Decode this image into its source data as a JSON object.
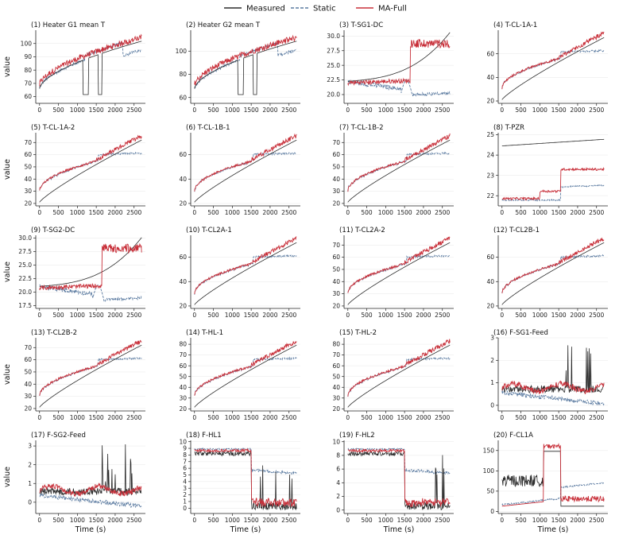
{
  "legend": {
    "items": [
      {
        "label": "Measured",
        "color": "#2b2b2b",
        "dash": "solid"
      },
      {
        "label": "Static",
        "color": "#5a7aa0",
        "dash": "dashed"
      },
      {
        "label": "MA-Full",
        "color": "#c8303a",
        "dash": "solid"
      }
    ]
  },
  "ylabel": "value",
  "xlabel": "Time (s)",
  "xticks": [
    0,
    500,
    1000,
    1500,
    2000,
    2500
  ],
  "xlim": [
    -100,
    2800
  ],
  "chart_data": [
    {
      "type": "line",
      "title": "(1) Heater G1 mean T",
      "ylim": [
        55,
        110
      ],
      "yticks": [
        60,
        70,
        80,
        90,
        100
      ],
      "profile": "heater"
    },
    {
      "type": "line",
      "title": "(2) Heater G2 mean T",
      "ylim": [
        55,
        118
      ],
      "yticks": [
        60,
        80,
        100
      ],
      "profile": "heater"
    },
    {
      "type": "line",
      "title": "(3) T-SG1-DC",
      "ylim": [
        18.5,
        31
      ],
      "yticks": [
        20.0,
        22.5,
        25.0,
        27.5,
        30.0
      ],
      "profile": "sgdc"
    },
    {
      "type": "line",
      "title": "(4) T-CL-1A-1",
      "ylim": [
        18,
        80
      ],
      "yticks": [
        20,
        40,
        60
      ],
      "profile": "temp"
    },
    {
      "type": "line",
      "title": "(5) T-CL-1A-2",
      "ylim": [
        18,
        78
      ],
      "yticks": [
        20,
        30,
        40,
        50,
        60,
        70
      ],
      "profile": "temp"
    },
    {
      "type": "line",
      "title": "(6) T-CL-1B-1",
      "ylim": [
        18,
        78
      ],
      "yticks": [
        20,
        40,
        60
      ],
      "profile": "temp"
    },
    {
      "type": "line",
      "title": "(7) T-CL-1B-2",
      "ylim": [
        18,
        78
      ],
      "yticks": [
        20,
        30,
        40,
        50,
        60,
        70
      ],
      "profile": "temp"
    },
    {
      "type": "line",
      "title": "(8) T-PZR",
      "ylim": [
        21.5,
        25.1
      ],
      "yticks": [
        22,
        23,
        24,
        25
      ],
      "profile": "pzr"
    },
    {
      "type": "line",
      "title": "(9) T-SG2-DC",
      "ylim": [
        17,
        30.5
      ],
      "yticks": [
        17.5,
        20.0,
        22.5,
        25.0,
        27.5,
        30.0
      ],
      "profile": "sgdc"
    },
    {
      "type": "line",
      "title": "(10) T-CL2A-1",
      "ylim": [
        18,
        78
      ],
      "yticks": [
        20,
        40,
        60
      ],
      "profile": "temp"
    },
    {
      "type": "line",
      "title": "(11) T-CL2A-2",
      "ylim": [
        18,
        78
      ],
      "yticks": [
        20,
        30,
        40,
        50,
        60,
        70
      ],
      "profile": "temp"
    },
    {
      "type": "line",
      "title": "(12) T-CL2B-1",
      "ylim": [
        18,
        78
      ],
      "yticks": [
        20,
        40,
        60
      ],
      "profile": "temp"
    },
    {
      "type": "line",
      "title": "(13) T-CL2B-2",
      "ylim": [
        18,
        78
      ],
      "yticks": [
        20,
        30,
        40,
        50,
        60,
        70
      ],
      "profile": "temp"
    },
    {
      "type": "line",
      "title": "(14) T-HL-1",
      "ylim": [
        18,
        86
      ],
      "yticks": [
        20,
        30,
        40,
        50,
        60,
        70,
        80
      ],
      "profile": "temp"
    },
    {
      "type": "line",
      "title": "(15) T-HL-2",
      "ylim": [
        18,
        86
      ],
      "yticks": [
        20,
        30,
        40,
        50,
        60,
        70,
        80
      ],
      "profile": "temp"
    },
    {
      "type": "line",
      "title": "(16) F-SG1-Feed",
      "ylim": [
        -0.25,
        3
      ],
      "yticks": [
        0,
        1,
        2,
        3
      ],
      "profile": "feed"
    },
    {
      "type": "line",
      "title": "(17) F-SG2-Feed",
      "ylim": [
        -0.6,
        3.3
      ],
      "yticks": [
        0,
        1,
        2,
        3
      ],
      "profile": "feed"
    },
    {
      "type": "line",
      "title": "(18) F-HL1",
      "ylim": [
        -0.8,
        10.2
      ],
      "yticks": [
        0,
        1,
        2,
        3,
        4,
        5,
        6,
        7,
        8,
        9,
        10
      ],
      "profile": "flow"
    },
    {
      "type": "line",
      "title": "(19) F-HL2",
      "ylim": [
        -0.5,
        10.2
      ],
      "yticks": [
        0,
        2,
        4,
        6,
        8,
        10
      ],
      "profile": "flow"
    },
    {
      "type": "line",
      "title": "(20) F-CL1A",
      "ylim": [
        -5,
        175
      ],
      "yticks": [
        0,
        50,
        100,
        150
      ],
      "profile": "cl1a"
    }
  ]
}
